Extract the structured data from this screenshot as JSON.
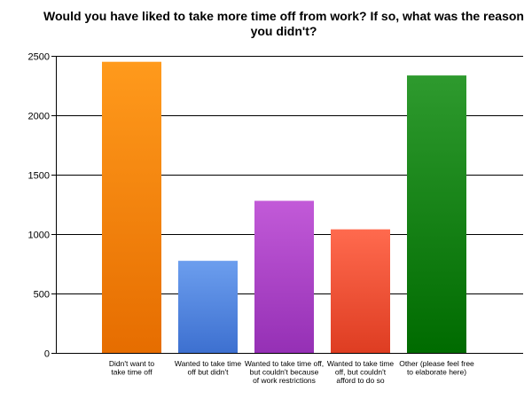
{
  "chart_data": {
    "type": "bar",
    "title": "Would you have liked to take more time off from work? If so, what was the reason you didn't?",
    "xlabel": "",
    "ylabel": "",
    "ylim": [
      0,
      2500
    ],
    "yticks": [
      0,
      500,
      1000,
      1500,
      2000,
      2500
    ],
    "grid": true,
    "legend": "none",
    "categories": [
      [
        "Didn't want to",
        "take time off"
      ],
      [
        "Wanted to take time",
        "off but didn't"
      ],
      [
        "Wanted to take time off,",
        "but couldn't because",
        "of work restrictions"
      ],
      [
        "Wanted to take time",
        "off, but couldn't",
        "afford to do so"
      ],
      [
        "Other (please feel free",
        "to elaborate here)"
      ]
    ],
    "values": [
      2450,
      775,
      1280,
      1040,
      2335
    ],
    "colors": [
      [
        "#ff9a1c",
        "#e66d00"
      ],
      [
        "#6c9eee",
        "#3d70d0"
      ],
      [
        "#c25ad8",
        "#9530b5"
      ],
      [
        "#ff6a4e",
        "#de3d22"
      ],
      [
        "#2e9a2e",
        "#006b00"
      ]
    ]
  }
}
